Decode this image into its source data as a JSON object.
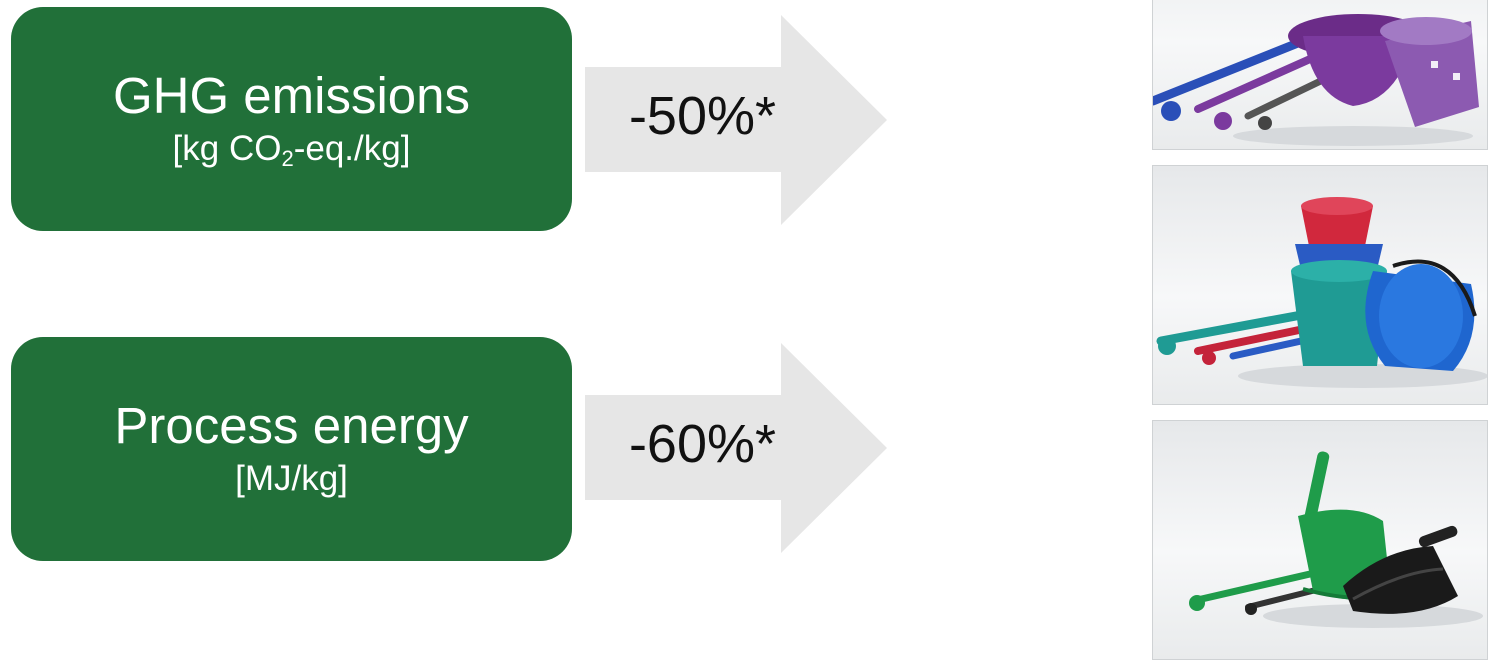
{
  "rows": [
    {
      "title": "GHG emissions",
      "unit_prefix": "[kg CO",
      "unit_sub": "2",
      "unit_suffix": "-eq./kg]",
      "reduction": "-50%*"
    },
    {
      "title": "Process energy",
      "unit_prefix": "[MJ/kg]",
      "unit_sub": "",
      "unit_suffix": "",
      "reduction": "-60%*"
    }
  ],
  "colors": {
    "box": "#217039",
    "arrow": "#e6e6e6"
  },
  "images": [
    {
      "name": "product-photo-flower-pots",
      "description": "purple flower pots with plastic granules"
    },
    {
      "name": "product-photo-buckets",
      "description": "red, teal and blue buckets with plastic granules"
    },
    {
      "name": "product-photo-dustpan",
      "description": "green and black dustpans with plastic granules"
    }
  ]
}
